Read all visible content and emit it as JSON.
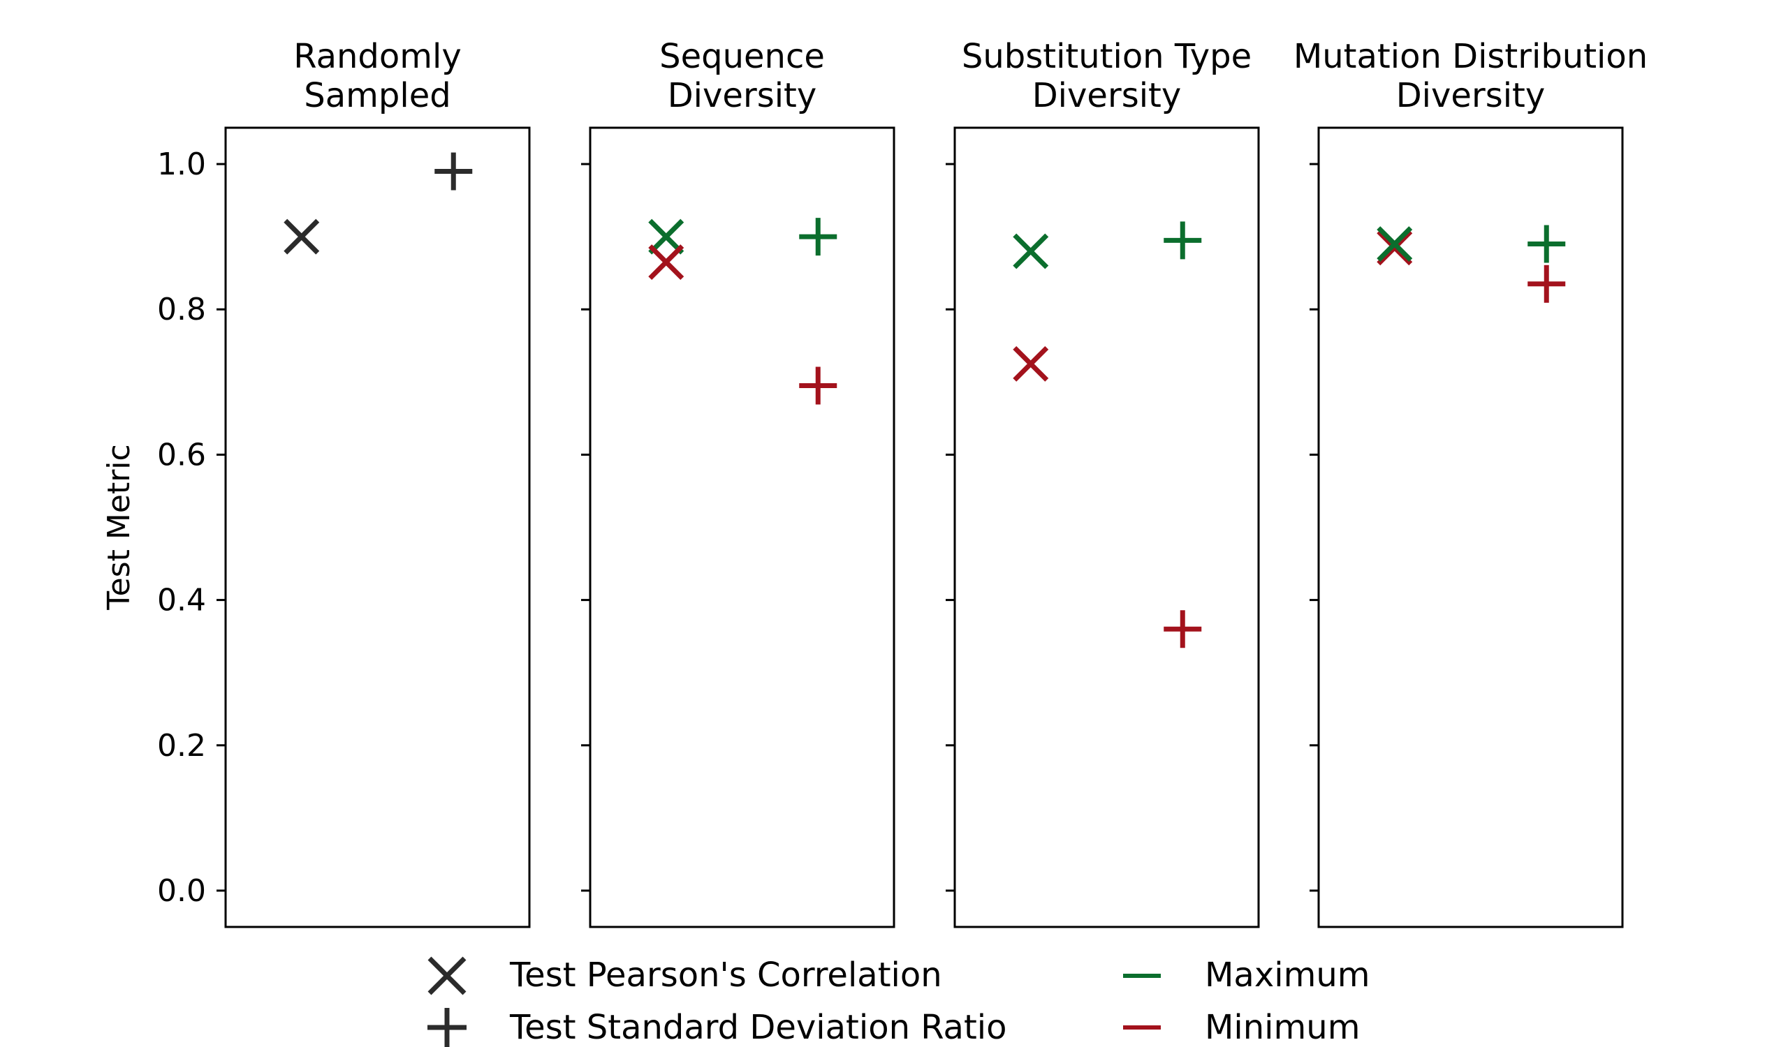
{
  "chart_data": {
    "type": "scatter",
    "ylabel": "Test Metric",
    "ylim": [
      -0.05,
      1.05
    ],
    "yticks": [
      "0.0",
      "0.2",
      "0.4",
      "0.6",
      "0.8",
      "1.0"
    ],
    "ytick_values": [
      0.0,
      0.2,
      0.4,
      0.6,
      0.8,
      1.0
    ],
    "grid": false,
    "colors": {
      "neutral": "#2b2b2b",
      "maximum": "#0b6e2d",
      "minimum": "#a3121c"
    },
    "panels": [
      {
        "title_line1": "Randomly",
        "title_line2": "Sampled",
        "points": [
          {
            "metric": "pearson",
            "group": "neutral",
            "value": 0.9
          },
          {
            "metric": "std_ratio",
            "group": "neutral",
            "value": 0.99
          }
        ]
      },
      {
        "title_line1": "Sequence",
        "title_line2": "Diversity",
        "points": [
          {
            "metric": "pearson",
            "group": "maximum",
            "value": 0.9
          },
          {
            "metric": "pearson",
            "group": "minimum",
            "value": 0.865
          },
          {
            "metric": "std_ratio",
            "group": "maximum",
            "value": 0.9
          },
          {
            "metric": "std_ratio",
            "group": "minimum",
            "value": 0.695
          }
        ]
      },
      {
        "title_line1": "Substitution Type",
        "title_line2": "Diversity",
        "points": [
          {
            "metric": "pearson",
            "group": "maximum",
            "value": 0.88
          },
          {
            "metric": "pearson",
            "group": "minimum",
            "value": 0.725
          },
          {
            "metric": "std_ratio",
            "group": "maximum",
            "value": 0.895
          },
          {
            "metric": "std_ratio",
            "group": "minimum",
            "value": 0.36
          }
        ]
      },
      {
        "title_line1": "Mutation Distribution",
        "title_line2": "Diversity",
        "points": [
          {
            "metric": "pearson",
            "group": "minimum",
            "value": 0.885
          },
          {
            "metric": "pearson",
            "group": "maximum",
            "value": 0.89
          },
          {
            "metric": "std_ratio",
            "group": "maximum",
            "value": 0.89
          },
          {
            "metric": "std_ratio",
            "group": "minimum",
            "value": 0.835
          }
        ]
      }
    ],
    "legend": {
      "placement": "bottom",
      "markers": [
        {
          "symbol": "x-icon",
          "label": "Test Pearson's Correlation"
        },
        {
          "symbol": "plus-icon",
          "label": "Test Standard Deviation Ratio"
        }
      ],
      "groups": [
        {
          "group": "maximum",
          "label": "Maximum"
        },
        {
          "group": "minimum",
          "label": "Minimum"
        }
      ]
    }
  }
}
